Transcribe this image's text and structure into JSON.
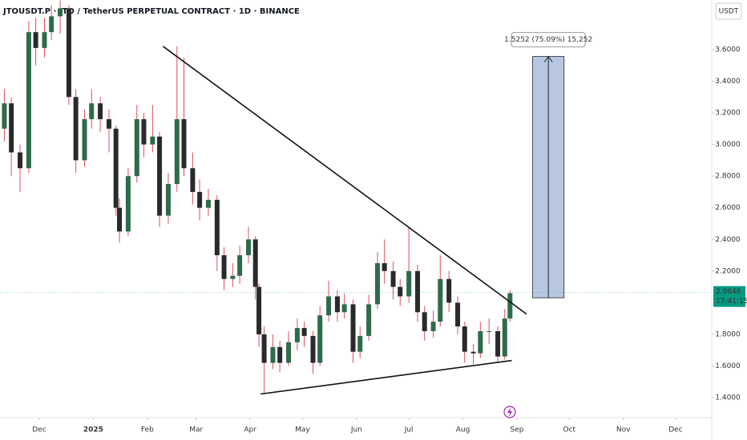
{
  "chart_data": {
    "type": "candlestick",
    "title": "JTOUSDT.P · JTO / TetherUS PERPETUAL CONTRACT · 1D · BINANCE",
    "currency": "USDT",
    "up_color": "#2e6b4a",
    "down_color": "#2a2a2a",
    "wick_color": "#d9505c",
    "xlim": [
      0.5,
      408.7
    ],
    "ylim": [
      1.284,
      3.913
    ],
    "xticks": [
      {
        "value": 23,
        "label": "Dec"
      },
      {
        "value": 54,
        "label": "2025"
      },
      {
        "value": 85,
        "label": "Feb"
      },
      {
        "value": 113,
        "label": "Mar"
      },
      {
        "value": 144,
        "label": "Apr"
      },
      {
        "value": 174,
        "label": "May"
      },
      {
        "value": 205,
        "label": "Jun"
      },
      {
        "value": 235,
        "label": "Jul"
      },
      {
        "value": 266,
        "label": "Aug"
      },
      {
        "value": 297,
        "label": "Sep"
      },
      {
        "value": 327,
        "label": "Oct"
      },
      {
        "value": 358,
        "label": "Nov"
      },
      {
        "value": 388,
        "label": "Dec"
      }
    ],
    "yticks": [
      {
        "value": 1.4,
        "label": "1.4000"
      },
      {
        "value": 1.6,
        "label": "1.6000"
      },
      {
        "value": 1.8,
        "label": "1.8000"
      },
      {
        "value": 2.2,
        "label": "2.2000"
      },
      {
        "value": 2.4,
        "label": "2.4000"
      },
      {
        "value": 2.6,
        "label": "2.6000"
      },
      {
        "value": 2.8,
        "label": "2.8000"
      },
      {
        "value": 3.0,
        "label": "3.0000"
      },
      {
        "value": 3.2,
        "label": "3.2000"
      },
      {
        "value": 3.4,
        "label": "3.4000"
      },
      {
        "value": 3.6,
        "label": "3.6000"
      }
    ],
    "x": [
      3,
      7,
      12,
      17,
      21,
      26,
      30,
      35,
      40,
      44,
      49,
      53,
      58,
      63,
      67,
      69,
      74,
      79,
      83,
      88,
      92,
      97,
      102,
      106,
      111,
      115,
      120,
      125,
      129,
      134,
      138,
      143,
      147,
      149,
      152,
      157,
      161,
      166,
      171,
      175,
      180,
      184,
      189,
      194,
      198,
      203,
      207,
      212,
      217,
      221,
      226,
      230,
      235,
      240,
      244,
      249,
      253,
      258,
      263,
      267,
      272,
      276,
      281,
      286,
      290,
      293
    ],
    "open": [
      3.1,
      3.26,
      2.95,
      2.85,
      3.71,
      3.61,
      3.71,
      3.81,
      3.86,
      3.3,
      2.9,
      3.16,
      3.26,
      3.16,
      3.1,
      2.6,
      2.45,
      2.8,
      3.16,
      3.0,
      3.05,
      2.55,
      2.75,
      3.16,
      2.85,
      2.7,
      2.6,
      2.65,
      2.3,
      2.15,
      2.17,
      2.3,
      2.4,
      2.1,
      1.8,
      1.62,
      1.72,
      1.62,
      1.75,
      1.84,
      1.79,
      1.62,
      1.92,
      2.04,
      1.94,
      1.99,
      1.69,
      1.79,
      1.99,
      2.25,
      2.2,
      2.1,
      2.04,
      2.2,
      1.94,
      1.82,
      1.88,
      2.15,
      2.0,
      1.85,
      1.69,
      1.68,
      1.82,
      1.82,
      1.66,
      1.9
    ],
    "high": [
      3.35,
      3.3,
      3.0,
      3.78,
      3.8,
      3.8,
      3.88,
      3.91,
      3.88,
      3.35,
      3.22,
      3.35,
      3.3,
      3.22,
      3.12,
      2.66,
      2.85,
      3.25,
      3.2,
      3.25,
      3.08,
      2.82,
      3.62,
      3.55,
      2.95,
      2.78,
      2.72,
      2.68,
      2.35,
      2.25,
      2.36,
      2.48,
      2.42,
      2.12,
      1.85,
      1.8,
      1.76,
      1.82,
      1.9,
      1.88,
      1.82,
      1.98,
      2.14,
      2.08,
      2.06,
      2.02,
      1.85,
      2.05,
      2.32,
      2.4,
      2.26,
      2.15,
      2.48,
      2.24,
      1.98,
      1.95,
      2.3,
      2.2,
      2.04,
      1.88,
      1.74,
      1.88,
      1.9,
      1.85,
      1.96,
      2.08
    ],
    "low": [
      3.02,
      2.8,
      2.7,
      2.82,
      3.5,
      3.55,
      3.66,
      3.7,
      3.25,
      2.82,
      2.86,
      3.1,
      3.08,
      2.95,
      2.55,
      2.38,
      2.42,
      2.76,
      2.92,
      2.95,
      2.48,
      2.5,
      2.7,
      2.8,
      2.62,
      2.52,
      2.55,
      2.2,
      2.08,
      2.1,
      2.12,
      2.25,
      2.02,
      1.72,
      1.43,
      1.58,
      1.56,
      1.6,
      1.7,
      1.72,
      1.55,
      1.6,
      1.88,
      1.88,
      1.9,
      1.62,
      1.65,
      1.76,
      1.96,
      2.12,
      2.02,
      1.98,
      2.0,
      1.88,
      1.76,
      1.78,
      1.85,
      1.94,
      1.8,
      1.62,
      1.61,
      1.65,
      1.74,
      1.62,
      1.64,
      1.88
    ],
    "close": [
      3.26,
      2.95,
      2.85,
      3.71,
      3.61,
      3.71,
      3.81,
      3.86,
      3.3,
      2.9,
      3.16,
      3.26,
      3.16,
      3.1,
      2.6,
      2.45,
      2.8,
      3.16,
      3.0,
      3.05,
      2.55,
      2.75,
      3.16,
      2.85,
      2.7,
      2.6,
      2.65,
      2.3,
      2.15,
      2.17,
      2.3,
      2.4,
      2.1,
      1.8,
      1.62,
      1.72,
      1.62,
      1.75,
      1.84,
      1.79,
      1.62,
      1.92,
      2.04,
      1.94,
      1.99,
      1.69,
      1.79,
      1.99,
      2.25,
      2.2,
      2.1,
      2.04,
      2.2,
      1.94,
      1.82,
      1.88,
      2.15,
      2.0,
      1.85,
      1.69,
      1.68,
      1.82,
      1.82,
      1.66,
      1.9,
      2.06
    ],
    "trendlines": [
      {
        "x": [
          94,
          302.5
        ],
        "y": [
          3.62,
          1.928
        ]
      },
      {
        "x": [
          150,
          294
        ],
        "y": [
          1.423,
          1.635
        ]
      }
    ],
    "measure": {
      "label": "1.5252 (75.09%) 15,252",
      "x": [
        306,
        324
      ],
      "y": [
        2.031,
        3.556
      ]
    },
    "last_price": {
      "value": 2.0646,
      "label": "2.0646",
      "countdown": "17:41:15",
      "color": "#089981"
    }
  }
}
